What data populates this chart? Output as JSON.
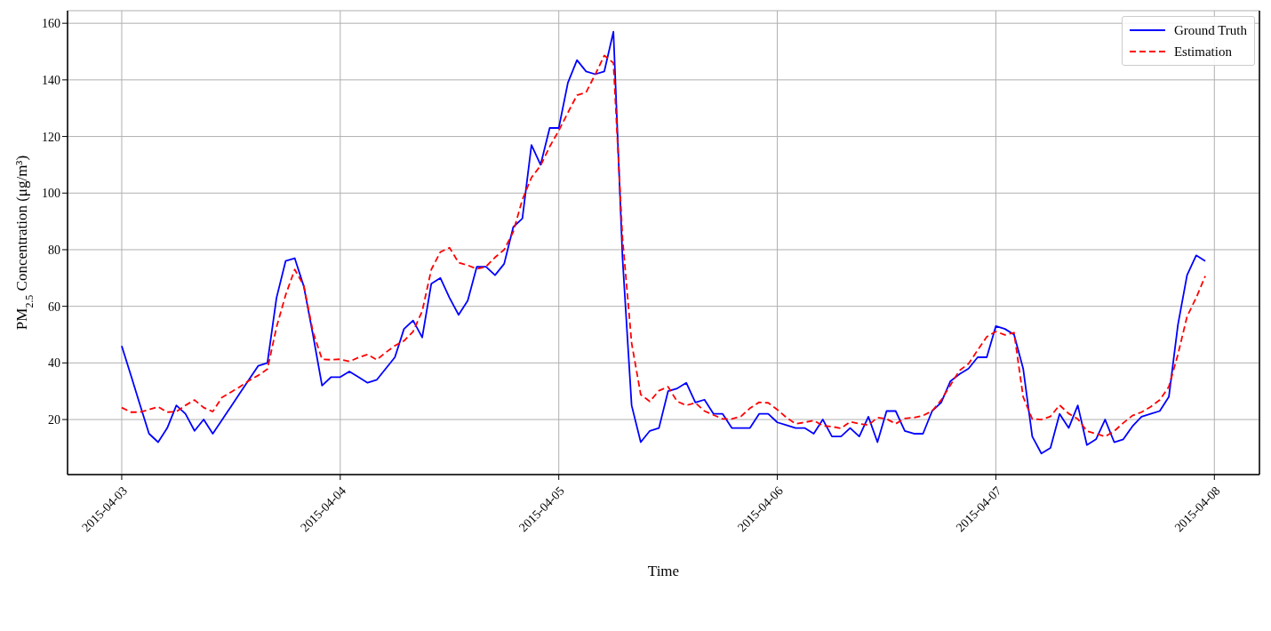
{
  "chart_data": {
    "type": "line",
    "xlabel": "Time",
    "ylabel": "PM$_{2.5}$ Concentration (μg/m³)",
    "x": [
      "2015-04-03T00:00",
      "2015-04-03T01:00",
      "2015-04-03T02:00",
      "2015-04-03T03:00",
      "2015-04-03T04:00",
      "2015-04-03T05:00",
      "2015-04-03T06:00",
      "2015-04-03T07:00",
      "2015-04-03T08:00",
      "2015-04-03T09:00",
      "2015-04-03T10:00",
      "2015-04-03T11:00",
      "2015-04-03T12:00",
      "2015-04-03T13:00",
      "2015-04-03T14:00",
      "2015-04-03T15:00",
      "2015-04-03T16:00",
      "2015-04-03T17:00",
      "2015-04-03T18:00",
      "2015-04-03T19:00",
      "2015-04-03T20:00",
      "2015-04-03T21:00",
      "2015-04-03T22:00",
      "2015-04-03T23:00",
      "2015-04-04T00:00",
      "2015-04-04T01:00",
      "2015-04-04T02:00",
      "2015-04-04T03:00",
      "2015-04-04T04:00",
      "2015-04-04T05:00",
      "2015-04-04T06:00",
      "2015-04-04T07:00",
      "2015-04-04T08:00",
      "2015-04-04T09:00",
      "2015-04-04T10:00",
      "2015-04-04T11:00",
      "2015-04-04T12:00",
      "2015-04-04T13:00",
      "2015-04-04T14:00",
      "2015-04-04T15:00",
      "2015-04-04T16:00",
      "2015-04-04T17:00",
      "2015-04-04T18:00",
      "2015-04-04T19:00",
      "2015-04-04T20:00",
      "2015-04-04T21:00",
      "2015-04-04T22:00",
      "2015-04-04T23:00",
      "2015-04-05T00:00",
      "2015-04-05T01:00",
      "2015-04-05T02:00",
      "2015-04-05T03:00",
      "2015-04-05T04:00",
      "2015-04-05T05:00",
      "2015-04-05T06:00",
      "2015-04-05T07:00",
      "2015-04-05T08:00",
      "2015-04-05T09:00",
      "2015-04-05T10:00",
      "2015-04-05T11:00",
      "2015-04-05T12:00",
      "2015-04-05T13:00",
      "2015-04-05T14:00",
      "2015-04-05T15:00",
      "2015-04-05T16:00",
      "2015-04-05T17:00",
      "2015-04-05T18:00",
      "2015-04-05T19:00",
      "2015-04-05T20:00",
      "2015-04-05T21:00",
      "2015-04-05T22:00",
      "2015-04-05T23:00",
      "2015-04-06T00:00",
      "2015-04-06T01:00",
      "2015-04-06T02:00",
      "2015-04-06T03:00",
      "2015-04-06T04:00",
      "2015-04-06T05:00",
      "2015-04-06T06:00",
      "2015-04-06T07:00",
      "2015-04-06T08:00",
      "2015-04-06T09:00",
      "2015-04-06T10:00",
      "2015-04-06T11:00",
      "2015-04-06T12:00",
      "2015-04-06T13:00",
      "2015-04-06T14:00",
      "2015-04-06T15:00",
      "2015-04-06T16:00",
      "2015-04-06T17:00",
      "2015-04-06T18:00",
      "2015-04-06T19:00",
      "2015-04-06T20:00",
      "2015-04-06T21:00",
      "2015-04-06T22:00",
      "2015-04-06T23:00",
      "2015-04-07T00:00",
      "2015-04-07T01:00",
      "2015-04-07T02:00",
      "2015-04-07T03:00",
      "2015-04-07T04:00",
      "2015-04-07T05:00",
      "2015-04-07T06:00",
      "2015-04-07T07:00",
      "2015-04-07T08:00",
      "2015-04-07T09:00",
      "2015-04-07T10:00",
      "2015-04-07T11:00",
      "2015-04-07T12:00",
      "2015-04-07T13:00",
      "2015-04-07T14:00",
      "2015-04-07T15:00",
      "2015-04-07T16:00",
      "2015-04-07T17:00",
      "2015-04-07T18:00",
      "2015-04-07T19:00",
      "2015-04-07T20:00",
      "2015-04-07T21:00",
      "2015-04-07T22:00",
      "2015-04-07T23:00"
    ],
    "series": [
      {
        "name": "Ground Truth",
        "color": "#0000ff",
        "line_style": "solid",
        "values": [
          46,
          35.7,
          25.3,
          15,
          12,
          17,
          25,
          22,
          16,
          20,
          15,
          19.8,
          24.6,
          29.4,
          34.2,
          39,
          40,
          63,
          76,
          77,
          67,
          50,
          32,
          35,
          35,
          37,
          35,
          33,
          34,
          38,
          42,
          52,
          55,
          49,
          68,
          70,
          63,
          57,
          62,
          74,
          74,
          71,
          75,
          88,
          91,
          117,
          110,
          123,
          123,
          139,
          147,
          143,
          142,
          143,
          157,
          77,
          25,
          12,
          16,
          17,
          30,
          31,
          33,
          26,
          27,
          22,
          22,
          17,
          17,
          17,
          22,
          22,
          19,
          18,
          17,
          17,
          15,
          20,
          14,
          14,
          17,
          14,
          21,
          12,
          23,
          23,
          16,
          15,
          15,
          23,
          26,
          33.5,
          36,
          38,
          42,
          42,
          53,
          52,
          50,
          38,
          14,
          8,
          10,
          22,
          17,
          25,
          11,
          13,
          20,
          12,
          13,
          17.6,
          21,
          22,
          23,
          28,
          53.5,
          71,
          78,
          76
        ]
      },
      {
        "name": "Estimation",
        "color": "#ff0000",
        "line_style": "dashed",
        "values": [
          24.2,
          22.6,
          22.6,
          23.5,
          24.5,
          22.6,
          22.8,
          25,
          26.9,
          24.2,
          22.8,
          27.8,
          29.7,
          31.6,
          33.8,
          35.6,
          37.8,
          52.6,
          64,
          73,
          67.3,
          51,
          41.3,
          41.1,
          41.3,
          40.5,
          41.9,
          43,
          41.1,
          43.7,
          46.1,
          47.8,
          51.1,
          58.3,
          73,
          79.2,
          80.7,
          75.4,
          74.5,
          73.2,
          74,
          77.3,
          80,
          86.3,
          97.7,
          105.5,
          109.7,
          116.4,
          122.1,
          128.4,
          134.6,
          135.6,
          141.9,
          148.6,
          146,
          84,
          47,
          28.8,
          26.4,
          30.2,
          31.6,
          26.4,
          25,
          25.9,
          23,
          21.6,
          20.2,
          20.2,
          21.1,
          24,
          26.1,
          25.9,
          23.5,
          20.7,
          18.5,
          19,
          19.7,
          17.8,
          17.5,
          16.9,
          19.2,
          18.5,
          18,
          20.7,
          20.2,
          18.5,
          20.4,
          20.7,
          21.4,
          23,
          26.9,
          32.1,
          37.3,
          39.7,
          44.5,
          49.2,
          51.1,
          49.9,
          50.7,
          28,
          20.2,
          20,
          21.1,
          25.1,
          22.1,
          20.2,
          15.9,
          15,
          14,
          15.9,
          18.8,
          21.4,
          22.6,
          24.5,
          26.9,
          31.6,
          43,
          56.4,
          63,
          70.7
        ]
      }
    ],
    "xlim": [
      "2015-04-02T18:03",
      "2015-04-08T04:57"
    ],
    "xticks": [
      "2015-04-03",
      "2015-04-04",
      "2015-04-05",
      "2015-04-06",
      "2015-04-07",
      "2015-04-08"
    ],
    "ylim": [
      0.55,
      164.45
    ],
    "yticks": [
      20,
      40,
      60,
      80,
      100,
      120,
      140,
      160
    ],
    "grid": true,
    "legend": "top right",
    "marker": "none"
  }
}
